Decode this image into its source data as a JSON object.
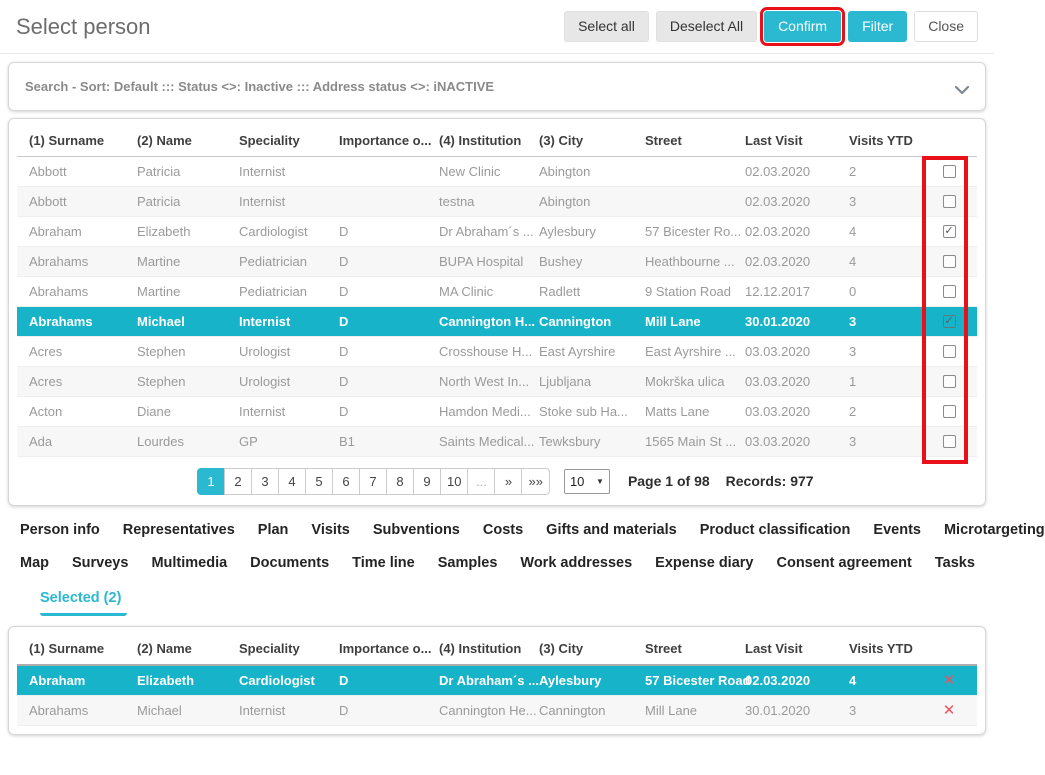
{
  "title": "Select person",
  "toolbar": {
    "select_all": "Select all",
    "deselect_all": "Deselect All",
    "confirm": "Confirm",
    "filter": "Filter",
    "close": "Close"
  },
  "search": {
    "summary": "Search - Sort: Default ::: Status <>: Inactive ::: Address status <>: iNACTIVE"
  },
  "icons": {
    "checkmark": "✓",
    "remove": "✕",
    "next": "»",
    "last": "»»",
    "ellipsis": "...",
    "dropdown_arrow": "▼"
  },
  "table": {
    "columns": [
      "(1) Surname",
      "(2) Name",
      "Speciality",
      "Importance o...",
      "(4) Institution",
      "(3) City",
      "Street",
      "Last Visit",
      "Visits YTD"
    ],
    "rows": [
      {
        "surname": "Abbott",
        "name": "Patricia",
        "speciality": "Internist",
        "importance": "",
        "institution": "New Clinic",
        "city": "Abington",
        "street": "",
        "last_visit": "02.03.2020",
        "visits_ytd": "2",
        "checked": false,
        "selected": false
      },
      {
        "surname": "Abbott",
        "name": "Patricia",
        "speciality": "Internist",
        "importance": "",
        "institution": "testna",
        "city": "Abington",
        "street": "",
        "last_visit": "02.03.2020",
        "visits_ytd": "3",
        "checked": false,
        "selected": false
      },
      {
        "surname": "Abraham",
        "name": "Elizabeth",
        "speciality": "Cardiologist",
        "importance": "D",
        "institution": "Dr Abraham´s ...",
        "city": "Aylesbury",
        "street": "57 Bicester Ro...",
        "last_visit": "02.03.2020",
        "visits_ytd": "4",
        "checked": true,
        "selected": false
      },
      {
        "surname": "Abrahams",
        "name": "Martine",
        "speciality": "Pediatrician",
        "importance": "D",
        "institution": "BUPA Hospital",
        "city": "Bushey",
        "street": "Heathbourne ...",
        "last_visit": "02.03.2020",
        "visits_ytd": "4",
        "checked": false,
        "selected": false
      },
      {
        "surname": "Abrahams",
        "name": "Martine",
        "speciality": "Pediatrician",
        "importance": "D",
        "institution": "MA Clinic",
        "city": "Radlett",
        "street": "9 Station Road",
        "last_visit": "12.12.2017",
        "visits_ytd": "0",
        "checked": false,
        "selected": false
      },
      {
        "surname": "Abrahams",
        "name": "Michael",
        "speciality": "Internist",
        "importance": "D",
        "institution": "Cannington H...",
        "city": "Cannington",
        "street": "Mill Lane",
        "last_visit": "30.01.2020",
        "visits_ytd": "3",
        "checked": true,
        "selected": true
      },
      {
        "surname": "Acres",
        "name": "Stephen",
        "speciality": "Urologist",
        "importance": "D",
        "institution": "Crosshouse H...",
        "city": "East Ayrshire",
        "street": "East Ayrshire ...",
        "last_visit": "03.03.2020",
        "visits_ytd": "3",
        "checked": false,
        "selected": false
      },
      {
        "surname": "Acres",
        "name": "Stephen",
        "speciality": "Urologist",
        "importance": "D",
        "institution": "North West In...",
        "city": "Ljubljana",
        "street": "Mokrška ulica",
        "last_visit": "03.03.2020",
        "visits_ytd": "1",
        "checked": false,
        "selected": false
      },
      {
        "surname": "Acton",
        "name": "Diane",
        "speciality": "Internist",
        "importance": "D",
        "institution": "Hamdon Medi...",
        "city": "Stoke sub Ha...",
        "street": "Matts Lane",
        "last_visit": "03.03.2020",
        "visits_ytd": "2",
        "checked": false,
        "selected": false
      },
      {
        "surname": "Ada",
        "name": "Lourdes",
        "speciality": "GP",
        "importance": "B1",
        "institution": "Saints Medical...",
        "city": "Tewksbury",
        "street": "1565 Main St ...",
        "last_visit": "03.03.2020",
        "visits_ytd": "3",
        "checked": false,
        "selected": false
      }
    ]
  },
  "pagination": {
    "pages": [
      "1",
      "2",
      "3",
      "4",
      "5",
      "6",
      "7",
      "8",
      "9",
      "10"
    ],
    "current": "1",
    "page_size": "10",
    "page_info": "Page 1 of 98",
    "records": "Records: 977"
  },
  "tabs": {
    "rows": [
      [
        "Person info",
        "Representatives",
        "Plan",
        "Visits",
        "Subventions",
        "Costs",
        "Gifts and materials",
        "Product classification",
        "Events",
        "Microtargeting"
      ],
      [
        "Map",
        "Surveys",
        "Multimedia",
        "Documents",
        "Time line",
        "Samples",
        "Work addresses",
        "Expense diary",
        "Consent agreement",
        "Tasks"
      ]
    ],
    "selected_tab": "Selected (2)"
  },
  "selected_table": {
    "columns": [
      "(1) Surname",
      "(2) Name",
      "Speciality",
      "Importance o...",
      "(4) Institution",
      "(3) City",
      "Street",
      "Last Visit",
      "Visits YTD"
    ],
    "rows": [
      {
        "surname": "Abraham",
        "name": "Elizabeth",
        "speciality": "Cardiologist",
        "importance": "D",
        "institution": "Dr Abraham´s ...",
        "city": "Aylesbury",
        "street": "57 Bicester Road",
        "last_visit": "02.03.2020",
        "visits_ytd": "4",
        "selected": true
      },
      {
        "surname": "Abrahams",
        "name": "Michael",
        "speciality": "Internist",
        "importance": "D",
        "institution": "Cannington He...",
        "city": "Cannington",
        "street": "Mill Lane",
        "last_visit": "30.01.2020",
        "visits_ytd": "3",
        "selected": false
      }
    ]
  },
  "colors": {
    "accent": "#2ab9d1",
    "selected_row": "#17b3c9",
    "annotation_red": "#e8111a"
  }
}
